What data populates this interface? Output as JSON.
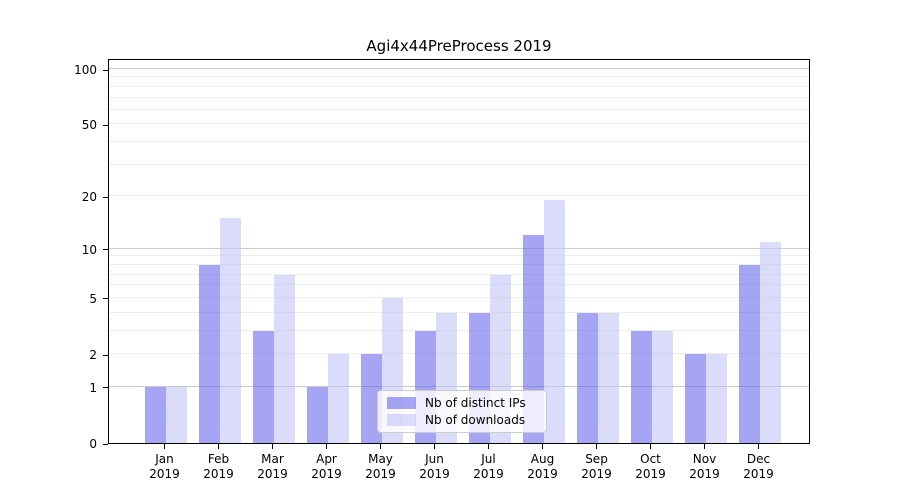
{
  "chart_data": {
    "type": "bar",
    "title": "Agi4x44PreProcess 2019",
    "x_categories": [
      "Jan",
      "Feb",
      "Mar",
      "Apr",
      "May",
      "Jun",
      "Jul",
      "Aug",
      "Sep",
      "Oct",
      "Nov",
      "Dec"
    ],
    "x_year": "2019",
    "series": [
      {
        "key": "distinct-ips",
        "name": "Nb of distinct IPs",
        "color": "rgba(105,105,235,0.6)",
        "values": [
          1,
          8,
          3,
          1,
          2,
          3,
          4,
          12,
          4,
          3,
          2,
          8
        ]
      },
      {
        "key": "downloads",
        "name": "Nb of downloads",
        "color": "rgba(195,195,247,0.6)",
        "values": [
          1,
          15,
          7,
          2,
          5,
          4,
          7,
          19,
          4,
          3,
          2,
          11
        ]
      }
    ],
    "y_scale": "log10(1+x)",
    "y_ticks": [
      0,
      1,
      2,
      5,
      10,
      20,
      50,
      100
    ],
    "y_grid_major": [
      1,
      10,
      100
    ],
    "y_grid_minor": [
      2,
      3,
      4,
      5,
      6,
      7,
      8,
      9,
      20,
      30,
      40,
      50,
      60,
      70,
      80,
      90
    ],
    "ylim": [
      0,
      115
    ],
    "grid": "horizontal",
    "legend": {
      "position": "lower center",
      "entries": [
        "Nb of distinct IPs",
        "Nb of downloads"
      ]
    },
    "colors": {
      "grid_major": "#c9c9c9",
      "grid_minor": "#ededed",
      "spine": "#000000",
      "text": "#000000",
      "legend_border": "#cccccc",
      "legend_bg": "rgba(255,255,255,0.8)"
    }
  }
}
